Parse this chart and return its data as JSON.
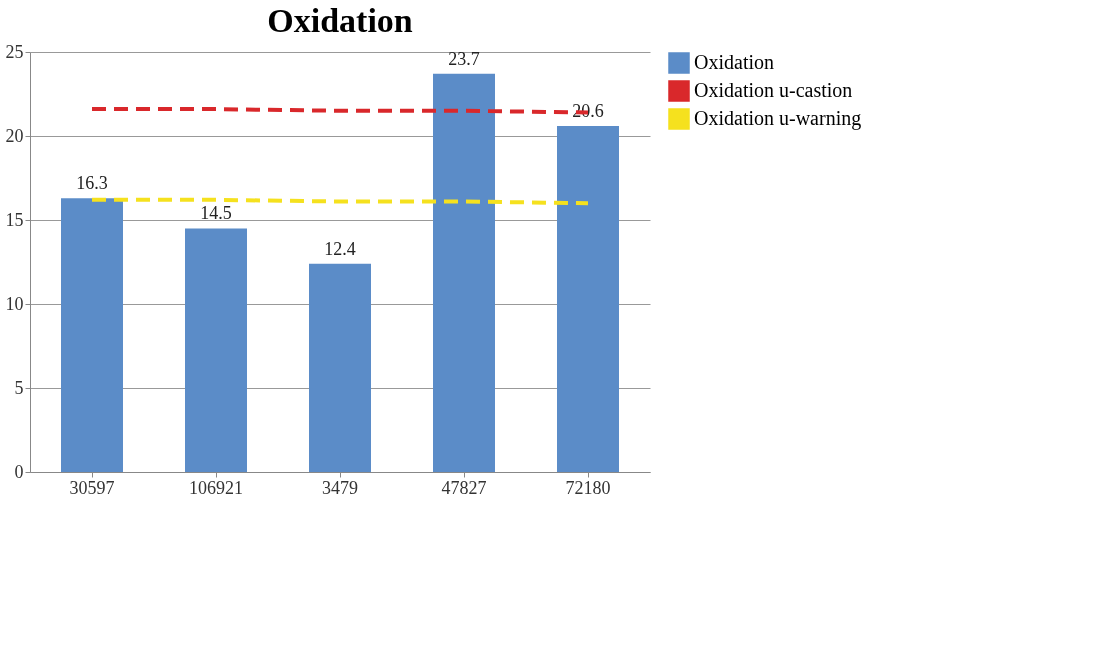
{
  "chart_data": {
    "type": "bar",
    "title": "Oxidation",
    "categories": [
      "30597",
      "106921",
      "3479",
      "47827",
      "72180"
    ],
    "series": [
      {
        "name": "Oxidation",
        "color": "#5b8cc8",
        "values": [
          16.3,
          14.5,
          12.4,
          23.7,
          20.6
        ],
        "value_labels": [
          "16.3",
          "14.5",
          "12.4",
          "23.7",
          "20.6"
        ]
      },
      {
        "name": "Oxidation u-castion",
        "type": "line",
        "line_style": "dashed",
        "color": "#d9282b",
        "values": [
          21.6,
          21.6,
          21.5,
          21.5,
          21.4
        ]
      },
      {
        "name": "Oxidation u-warning",
        "type": "line",
        "line_style": "dashed",
        "color": "#f5e11e",
        "values": [
          16.2,
          16.2,
          16.1,
          16.1,
          16.0
        ]
      }
    ],
    "ylim": [
      0,
      25
    ],
    "yticks": [
      0,
      5,
      10,
      15,
      20,
      25
    ],
    "grid": "y",
    "legend": "right"
  }
}
